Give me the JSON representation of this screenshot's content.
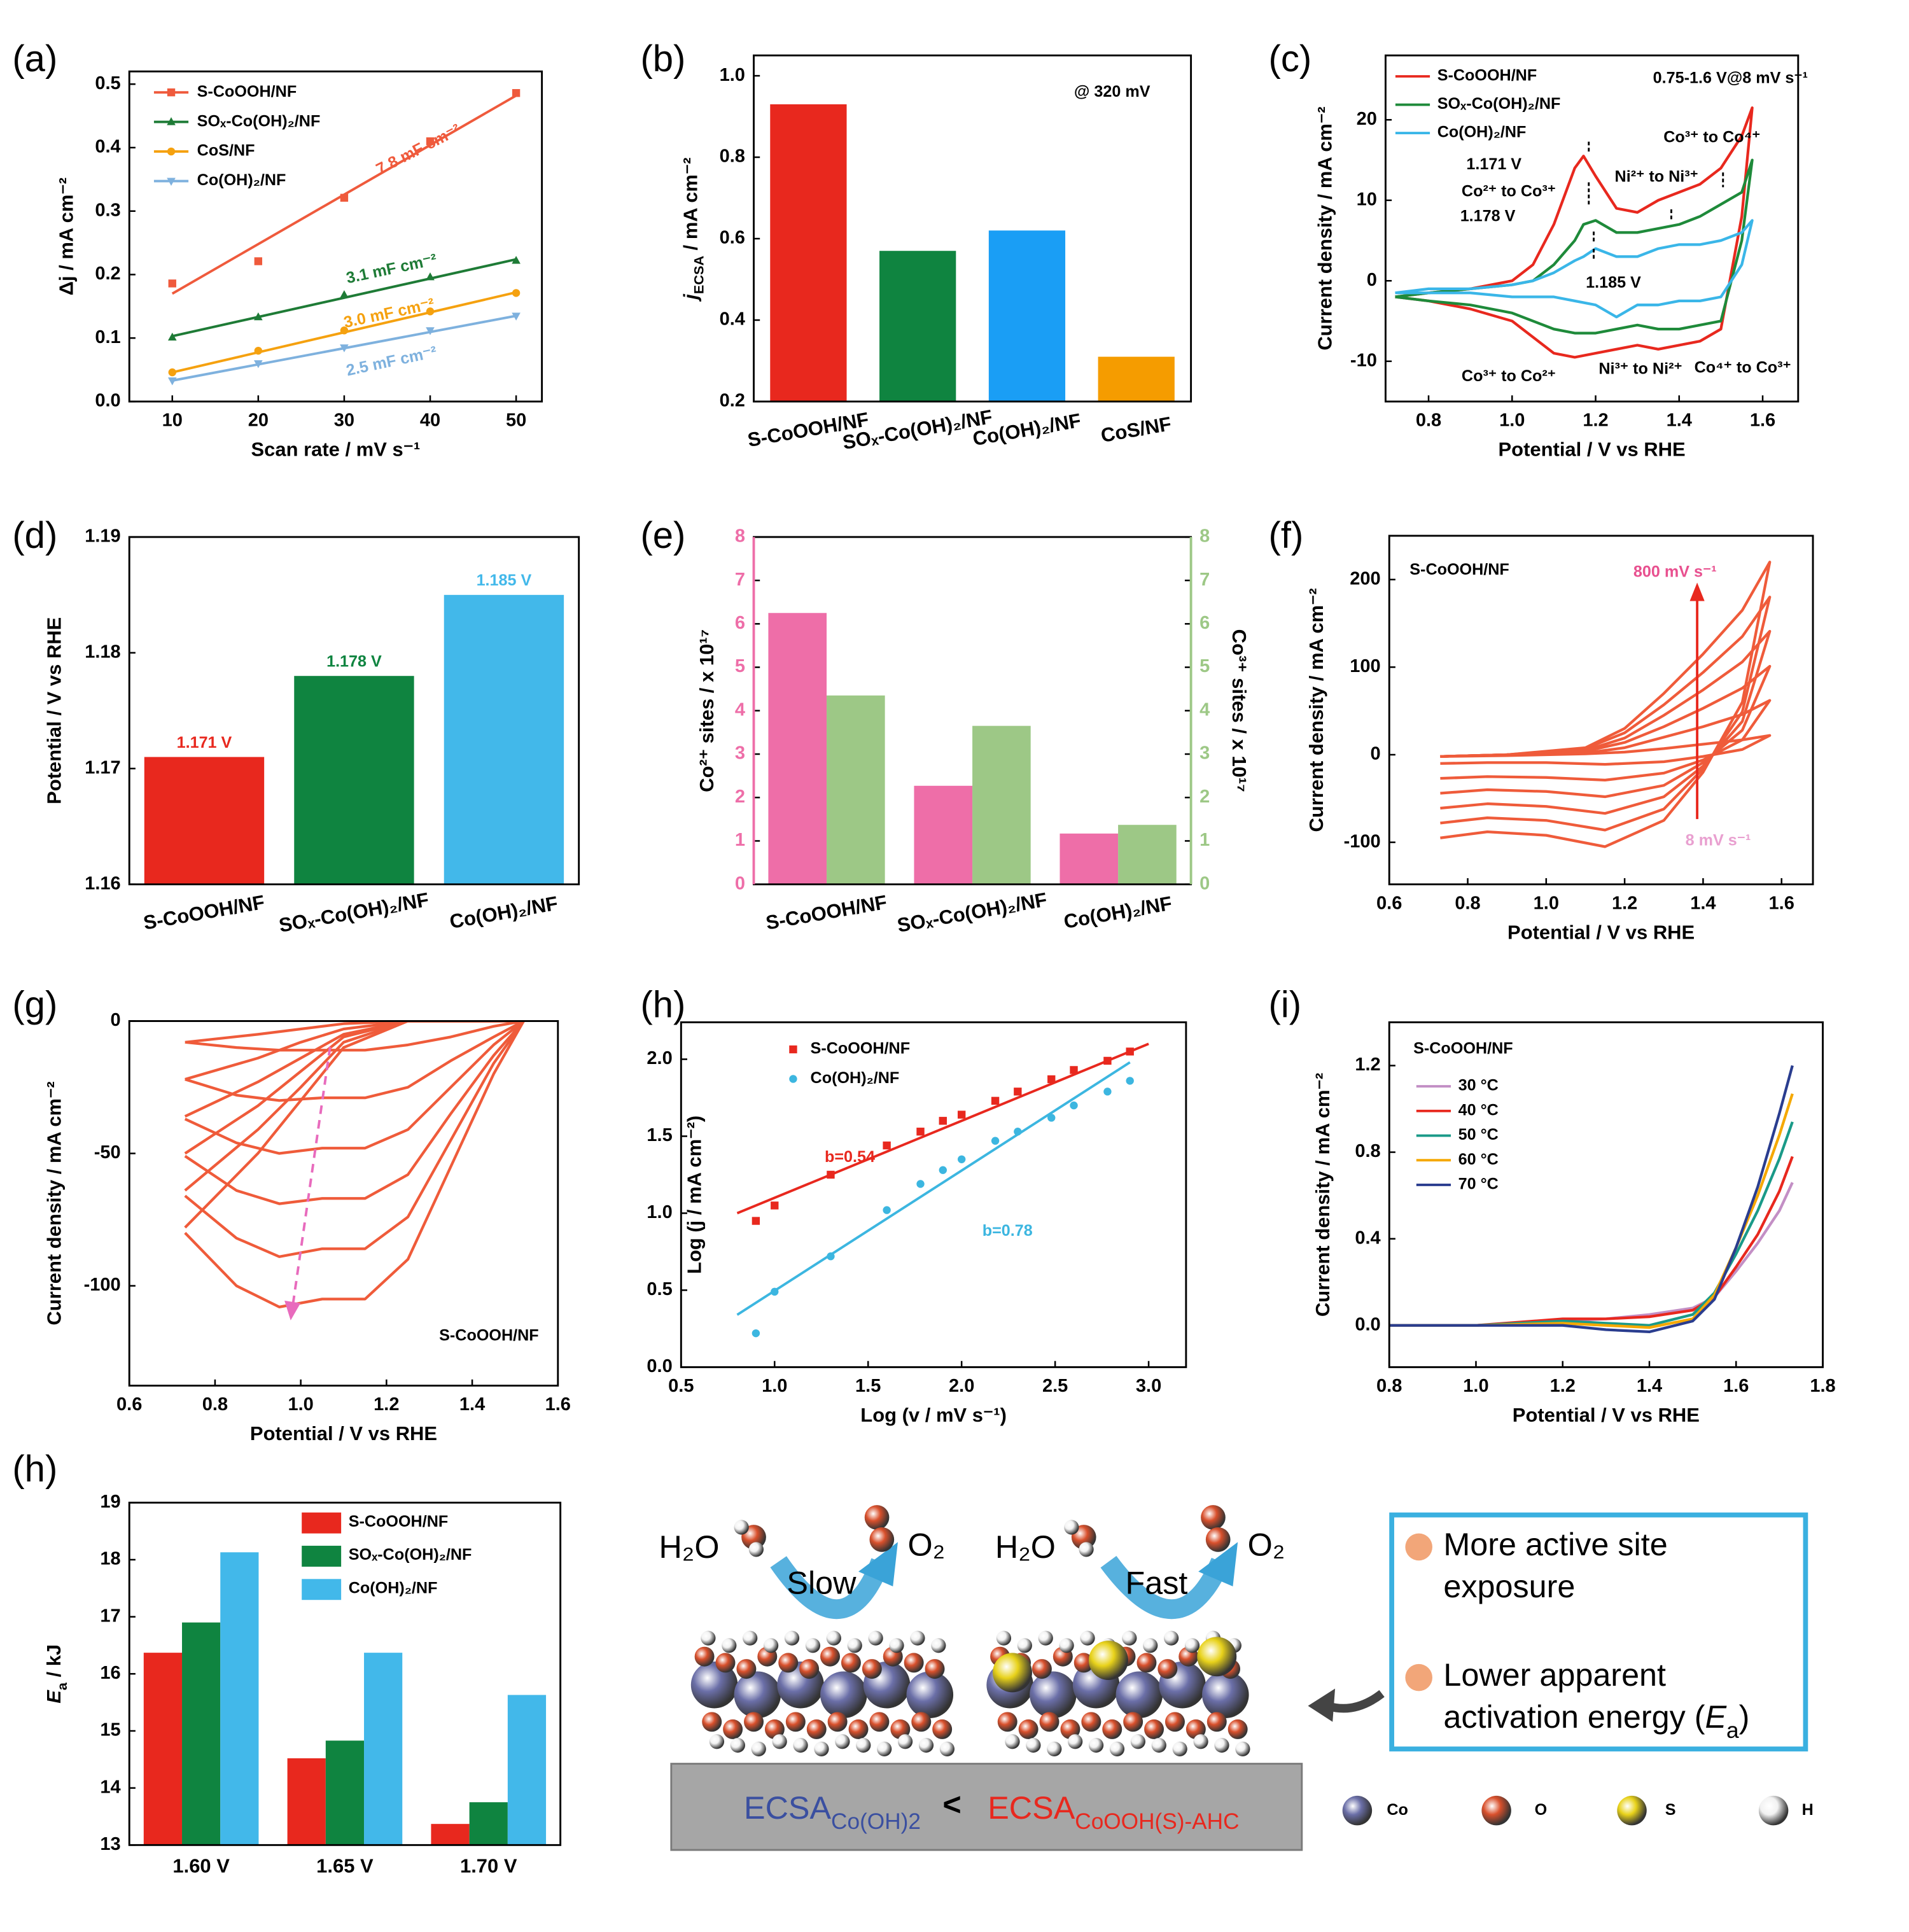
{
  "chart_data": [
    {
      "type": "scatter",
      "label": "(a)",
      "xlabel": "Scan rate / mV s⁻¹",
      "ylabel": "Δj / mA cm⁻²",
      "xlim": [
        5,
        53
      ],
      "ylim": [
        0,
        0.52
      ],
      "xticks": [
        10,
        20,
        30,
        40,
        50
      ],
      "yticks": [
        {
          "value": 0,
          "label": "0.0"
        },
        0.1,
        0.2,
        0.3,
        0.4,
        0.5
      ],
      "x": [
        10,
        20,
        30,
        40,
        50
      ],
      "legend": "upper left",
      "series": [
        {
          "name": "S-CoOOH/NF",
          "color": "#ef5a3c",
          "marker": "square",
          "values": [
            0.186,
            0.221,
            0.321,
            0.41,
            0.486
          ],
          "fit_x": [
            10,
            50
          ],
          "fit_values": [
            0.17,
            0.482
          ]
        },
        {
          "name": "SOₓ-Co(OH)₂/NF",
          "color": "#1e7b36",
          "marker": "triangle",
          "values": [
            0.101,
            0.133,
            0.168,
            0.196,
            0.222
          ],
          "fit_x": [
            10,
            50
          ],
          "fit_values": [
            0.103,
            0.224
          ]
        },
        {
          "name": "CoS/NF",
          "color": "#f5a10f",
          "marker": "circle",
          "values": [
            0.046,
            0.08,
            0.112,
            0.142,
            0.171
          ],
          "fit_x": [
            10,
            50
          ],
          "fit_values": [
            0.046,
            0.172
          ]
        },
        {
          "name": "Co(OH)₂/NF",
          "color": "#7eb1de",
          "marker": "triangle-down",
          "values": [
            0.033,
            0.06,
            0.085,
            0.112,
            0.135
          ],
          "fit_x": [
            10,
            50
          ],
          "fit_values": [
            0.033,
            0.135
          ]
        }
      ],
      "annotations": [
        "7.8 mF cm⁻²",
        "3.1 mF cm⁻²",
        "3.0 mF cm⁻²",
        "2.5 mF cm⁻²"
      ]
    },
    {
      "type": "bar",
      "label": "(b)",
      "ylabel": [
        {
          "text": "j",
          "style": "i"
        },
        {
          "text": "ECSA",
          "style": "sub"
        },
        {
          "text": " / mA cm⁻²"
        }
      ],
      "categories": [
        "S-CoOOH/NF",
        "SOₓ-Co(OH)₂/NF",
        "Co(OH)₂/NF",
        "CoS/NF"
      ],
      "values": [
        0.93,
        0.57,
        0.62,
        0.31
      ],
      "colors": [
        "#e8281e",
        "#0f8440",
        "#1a9ef5",
        "#f59c00"
      ],
      "ylim": [
        0.2,
        1.05
      ],
      "yticks": [
        0.2,
        0.4,
        0.6,
        0.8,
        {
          "value": 1,
          "label": "1.0"
        }
      ],
      "annotations": [
        "@ 320 mV"
      ]
    },
    {
      "type": "line",
      "label": "(c)",
      "xlabel": "Potential / V vs RHE",
      "ylabel": "Current density / mA cm⁻²",
      "xlim": [
        0.697,
        1.685
      ],
      "ylim": [
        -15,
        28
      ],
      "xticks": [
        0.8,
        {
          "value": 1,
          "label": "1.0"
        },
        1.2,
        1.4,
        1.6
      ],
      "yticks": [
        -10,
        0,
        10,
        20
      ],
      "legend": "upper left",
      "x": [
        0.72,
        0.8,
        0.9,
        1.0,
        1.05,
        1.1,
        1.15,
        1.171,
        1.2,
        1.25,
        1.3,
        1.35,
        1.4,
        1.45,
        1.5,
        1.55,
        1.575,
        1.55,
        1.5,
        1.45,
        1.4,
        1.35,
        1.3,
        1.25,
        1.2,
        1.15,
        1.1,
        1.0,
        0.9,
        0.8,
        0.72
      ],
      "series": [
        {
          "name": "S-CoOOH/NF",
          "color": "#e8281e",
          "values": [
            -2,
            -1.5,
            -1,
            0,
            2,
            7,
            14,
            15.5,
            13,
            9,
            8.5,
            10,
            11,
            12,
            14,
            18,
            21.5,
            8,
            -6,
            -7.5,
            -8,
            -8.5,
            -8,
            -8.5,
            -9,
            -9.5,
            -9,
            -5,
            -3.5,
            -2.5,
            -2
          ]
        },
        {
          "name": "SOₓ-Co(OH)₂/NF",
          "color": "#1e8a3a",
          "values": [
            -2,
            -1.5,
            -1,
            -0.5,
            0,
            2,
            5,
            7,
            7.5,
            6,
            6,
            6.5,
            7,
            8,
            9.5,
            11,
            15,
            5,
            -5,
            -5.5,
            -6,
            -6,
            -5.5,
            -6,
            -6.5,
            -6.5,
            -6,
            -4,
            -3,
            -2.5,
            -2
          ]
        },
        {
          "name": "Co(OH)₂/NF",
          "color": "#3ab6e8",
          "values": [
            -1.5,
            -1,
            -1,
            -0.5,
            0,
            1,
            2.5,
            3,
            4,
            3,
            3,
            4,
            4.5,
            4.5,
            5,
            6,
            7.5,
            2,
            -2,
            -2.5,
            -2.5,
            -3,
            -3,
            -4.5,
            -3,
            -2.5,
            -2,
            -2,
            -1.5,
            -1.5,
            -1.5
          ]
        }
      ],
      "annotations": [
        "0.75-1.6 V@8 mV s⁻¹",
        "Co³⁺ to Co⁴⁺",
        "1.171 V",
        "Ni²⁺ to Ni³⁺",
        "Co²⁺ to Co³⁺",
        "1.178 V",
        "1.185 V",
        "Co³⁺ to Co²⁺",
        "Ni³⁺ to Ni²⁺",
        "Co⁴⁺ to Co³⁺"
      ]
    },
    {
      "type": "bar",
      "label": "(d)",
      "ylabel": "Potential / V vs RHE",
      "categories": [
        "S-CoOOH/NF",
        "SOₓ-Co(OH)₂/NF",
        "Co(OH)₂/NF"
      ],
      "values": [
        1.171,
        1.178,
        1.185
      ],
      "value_labels": [
        "1.171 V",
        "1.178 V",
        "1.185 V"
      ],
      "colors": [
        "#e8281e",
        "#0f8440",
        "#42b8ea"
      ],
      "ylim": [
        1.16,
        1.19
      ],
      "yticks": [
        1.16,
        1.17,
        1.18,
        1.19
      ]
    },
    {
      "type": "bar",
      "label": "(e)",
      "ylabel": "Co²⁺ sites / x 10¹⁷",
      "y2label": "Co³⁺ sites / x 10¹⁷",
      "categories": [
        "S-CoOOH/NF",
        "SOₓ-Co(OH)₂/NF",
        "Co(OH)₂/NF"
      ],
      "ylim": [
        0,
        8
      ],
      "yticks": [
        0,
        1,
        2,
        3,
        4,
        5,
        6,
        7,
        8
      ],
      "y2lim": [
        0,
        8
      ],
      "y2ticks": [
        0,
        1,
        2,
        3,
        4,
        5,
        6,
        7,
        8
      ],
      "series": [
        {
          "color": "#ee6ea8",
          "values": [
            6.25,
            2.27,
            1.17
          ]
        },
        {
          "color": "#9dc886",
          "values": [
            4.35,
            3.65,
            1.37
          ],
          "axis": "y2"
        }
      ]
    },
    {
      "type": "line",
      "label": "(f)",
      "xlabel": "Potential / V vs RHE",
      "ylabel": "Current density / mA cm⁻²",
      "xlim": [
        0.6,
        1.68
      ],
      "ylim": [
        -148,
        250
      ],
      "xticks": [
        0.6,
        0.8,
        {
          "value": 1,
          "label": "1.0"
        },
        1.2,
        1.4,
        1.6
      ],
      "yticks": [
        -100,
        0,
        100,
        200
      ],
      "color": "#ef5b3a",
      "x": [
        0.73,
        0.9,
        1.1,
        1.2,
        1.3,
        1.4,
        1.5,
        1.57,
        1.5,
        1.4,
        1.3,
        1.15,
        1.0,
        0.85,
        0.73
      ],
      "series": [
        {
          "values": [
            -2,
            -1,
            1,
            3,
            7,
            12,
            17,
            22,
            6,
            -2,
            -8,
            -11,
            -9,
            -9,
            -10
          ]
        },
        {
          "values": [
            -2,
            0,
            2,
            8,
            20,
            32,
            46,
            62,
            17,
            -6,
            -21,
            -29,
            -26,
            -25,
            -27
          ]
        },
        {
          "values": [
            -2,
            0,
            4,
            14,
            32,
            53,
            76,
            101,
            28,
            -9,
            -35,
            -48,
            -42,
            -40,
            -44
          ]
        },
        {
          "values": [
            -2,
            0,
            5,
            19,
            45,
            74,
            106,
            141,
            38,
            -13,
            -48,
            -67,
            -59,
            -56,
            -61
          ]
        },
        {
          "values": [
            -2,
            0,
            7,
            25,
            57,
            94,
            135,
            180,
            49,
            -16,
            -62,
            -86,
            -75,
            -72,
            -78
          ]
        },
        {
          "values": [
            -2,
            0,
            8,
            30,
            70,
            115,
            165,
            220,
            60,
            -20,
            -75,
            -105,
            -92,
            -88,
            -95
          ]
        }
      ],
      "annotations": [
        "S-CoOOH/NF",
        "800 mV s⁻¹",
        "8 mV s⁻¹"
      ]
    },
    {
      "type": "line",
      "label": "(g)",
      "xlabel": "Potential / V vs RHE",
      "ylabel": "Current density / mA cm⁻²",
      "xlim": [
        0.6,
        1.6
      ],
      "ylim": [
        -137.7,
        0
      ],
      "xticks": [
        0.6,
        0.8,
        {
          "value": 1,
          "label": "1.0"
        },
        1.2,
        1.4,
        1.6
      ],
      "yticks": [
        -100,
        -50,
        0
      ],
      "color": "#ef5b3a",
      "x": [
        0.73,
        0.9,
        1.0,
        1.1,
        1.25,
        1.4,
        1.52,
        1.45,
        1.35,
        1.25,
        1.15,
        1.05,
        0.95,
        0.85,
        0.73
      ],
      "series": [
        {
          "values": [
            -8,
            -5,
            -3,
            -1,
            0,
            0,
            0,
            -2,
            -6,
            -9,
            -11,
            -11,
            -11,
            -10,
            -8
          ]
        },
        {
          "values": [
            -22,
            -14,
            -8,
            -3,
            0,
            0,
            0,
            -6,
            -15,
            -25,
            -29,
            -29,
            -30,
            -28,
            -22
          ]
        },
        {
          "values": [
            -36,
            -23,
            -14,
            -5,
            0,
            0,
            0,
            -9,
            -25,
            -41,
            -48,
            -48,
            -50,
            -46,
            -37
          ]
        },
        {
          "values": [
            -50,
            -32,
            -19,
            -6,
            0,
            0,
            0,
            -13,
            -35,
            -58,
            -67,
            -67,
            -69,
            -64,
            -51
          ]
        },
        {
          "values": [
            -64,
            -41,
            -25,
            -8,
            0,
            0,
            0,
            -16,
            -45,
            -74,
            -86,
            -86,
            -89,
            -82,
            -66
          ]
        },
        {
          "values": [
            -78,
            -50,
            -30,
            -10,
            0,
            0,
            0,
            -20,
            -55,
            -90,
            -105,
            -105,
            -108,
            -100,
            -80
          ]
        }
      ],
      "annotations": [
        "S-CoOOH/NF"
      ]
    },
    {
      "type": "scatter",
      "label": "(h)",
      "xlabel": "Log (v / mV s⁻¹)",
      "ylabel": "Log (j / mA cm⁻²)",
      "xlim": [
        0.5,
        3.2
      ],
      "ylim": [
        0,
        2.24
      ],
      "xticks": [
        0.5,
        {
          "value": 1,
          "label": "1.0"
        },
        1.5,
        {
          "value": 2,
          "label": "2.0"
        },
        2.5,
        {
          "value": 3,
          "label": "3.0"
        }
      ],
      "yticks": [
        {
          "value": 0,
          "label": "0.0"
        },
        0.5,
        {
          "value": 1,
          "label": "1.0"
        },
        1.5,
        {
          "value": 2,
          "label": "2.0"
        }
      ],
      "legend": "upper left",
      "x": [
        0.9,
        1.0,
        1.3,
        1.6,
        1.78,
        1.9,
        2.0,
        2.18,
        2.3,
        2.48,
        2.6,
        2.78,
        2.9
      ],
      "series": [
        {
          "name": "S-CoOOH/NF",
          "color": "#e8281e",
          "marker": "square",
          "values": [
            0.95,
            1.05,
            1.25,
            1.44,
            1.53,
            1.6,
            1.64,
            1.73,
            1.79,
            1.87,
            1.93,
            1.99,
            2.05
          ],
          "fit_x": [
            0.8,
            3.0
          ],
          "fit_values": [
            1.0,
            2.1
          ]
        },
        {
          "name": "Co(OH)₂/NF",
          "color": "#3cb6e0",
          "marker": "circle",
          "values": [
            0.22,
            0.49,
            0.72,
            1.02,
            1.19,
            1.28,
            1.35,
            1.47,
            1.53,
            1.62,
            1.7,
            1.79,
            1.86
          ],
          "fit_x": [
            0.8,
            2.9
          ],
          "fit_values": [
            0.34,
            1.98
          ]
        }
      ],
      "annotations": [
        "b=0.54",
        "b=0.78"
      ]
    },
    {
      "type": "line",
      "label": "(i)",
      "xlabel": "Potential / V vs RHE",
      "ylabel": "Current density / mA cm⁻²",
      "xlim": [
        0.8,
        1.8
      ],
      "ylim": [
        -0.193,
        1.4
      ],
      "xticks": [
        0.8,
        {
          "value": 1,
          "label": "1.0"
        },
        1.2,
        1.4,
        1.6,
        1.8
      ],
      "yticks": [
        {
          "value": 0,
          "label": "0.0"
        },
        0.4,
        0.8,
        1.2
      ],
      "legend": "upper left",
      "x": [
        0.8,
        1.0,
        1.2,
        1.3,
        1.4,
        1.5,
        1.55,
        1.6,
        1.65,
        1.7,
        1.73
      ],
      "series": [
        {
          "name": "30 °C",
          "color": "#c38fc5",
          "values": [
            0,
            0,
            0.02,
            0.03,
            0.05,
            0.08,
            0.13,
            0.25,
            0.38,
            0.53,
            0.66
          ]
        },
        {
          "name": "40 °C",
          "color": "#e8281e",
          "values": [
            0,
            0,
            0.03,
            0.03,
            0.04,
            0.07,
            0.13,
            0.27,
            0.42,
            0.62,
            0.78
          ]
        },
        {
          "name": "50 °C",
          "color": "#1a9a88",
          "values": [
            0,
            0,
            0.02,
            0.01,
            0,
            0.05,
            0.15,
            0.33,
            0.53,
            0.77,
            0.94
          ]
        },
        {
          "name": "60 °C",
          "color": "#f5a800",
          "values": [
            0,
            0,
            0.01,
            0,
            -0.01,
            0.03,
            0.14,
            0.36,
            0.6,
            0.88,
            1.07
          ]
        },
        {
          "name": "70 °C",
          "color": "#2a3d8f",
          "values": [
            0,
            0,
            0,
            -0.02,
            -0.03,
            0.02,
            0.12,
            0.36,
            0.64,
            0.98,
            1.2
          ]
        }
      ],
      "annotations": [
        "S-CoOOH/NF"
      ]
    },
    {
      "type": "bar",
      "label": "(h)",
      "ylabel": [
        {
          "text": "E",
          "style": "i"
        },
        {
          "text": "a",
          "style": "sub"
        },
        {
          "text": " / kJ"
        }
      ],
      "categories": [
        "1.60 V",
        "1.65 V",
        "1.70 V"
      ],
      "ylim": [
        13,
        19
      ],
      "yticks": [
        13,
        14,
        15,
        16,
        17,
        18,
        19
      ],
      "legend": "upper right",
      "series": [
        {
          "name": "S-CoOOH/NF",
          "color": "#e8281e",
          "values": [
            16.37,
            14.52,
            13.37
          ]
        },
        {
          "name": "SOₓ-Co(OH)₂/NF",
          "color": "#0f8440",
          "values": [
            16.9,
            14.83,
            13.75
          ]
        },
        {
          "name": "Co(OH)₂/NF",
          "color": "#42b8ea",
          "values": [
            18.13,
            16.37,
            15.63
          ]
        }
      ]
    }
  ],
  "scheme": {
    "steps": [
      {
        "reactant": "H₂O",
        "rate": "Slow",
        "product": "O₂"
      },
      {
        "reactant": "H₂O",
        "rate": "Fast",
        "product": "O₂"
      }
    ],
    "comparison": {
      "left": [
        {
          "text": "ECSA"
        },
        {
          "text": "Co(OH)2",
          "style": "sub"
        }
      ],
      "relation": "<",
      "right": [
        {
          "text": "ECSA"
        },
        {
          "text": "CoOOH(S)-AHC",
          "style": "sub"
        }
      ]
    },
    "benefits": [
      [
        [
          {
            "text": "More active site"
          }
        ],
        [
          {
            "text": "exposure"
          }
        ]
      ],
      [
        [
          {
            "text": "Lower apparent"
          }
        ],
        [
          {
            "text": "activation energy ("
          },
          {
            "text": "E",
            "style": "i"
          },
          {
            "text": "a",
            "style": "sub"
          },
          {
            "text": ")"
          }
        ]
      ]
    ],
    "atoms": [
      "Co",
      "O",
      "S",
      "H"
    ]
  }
}
